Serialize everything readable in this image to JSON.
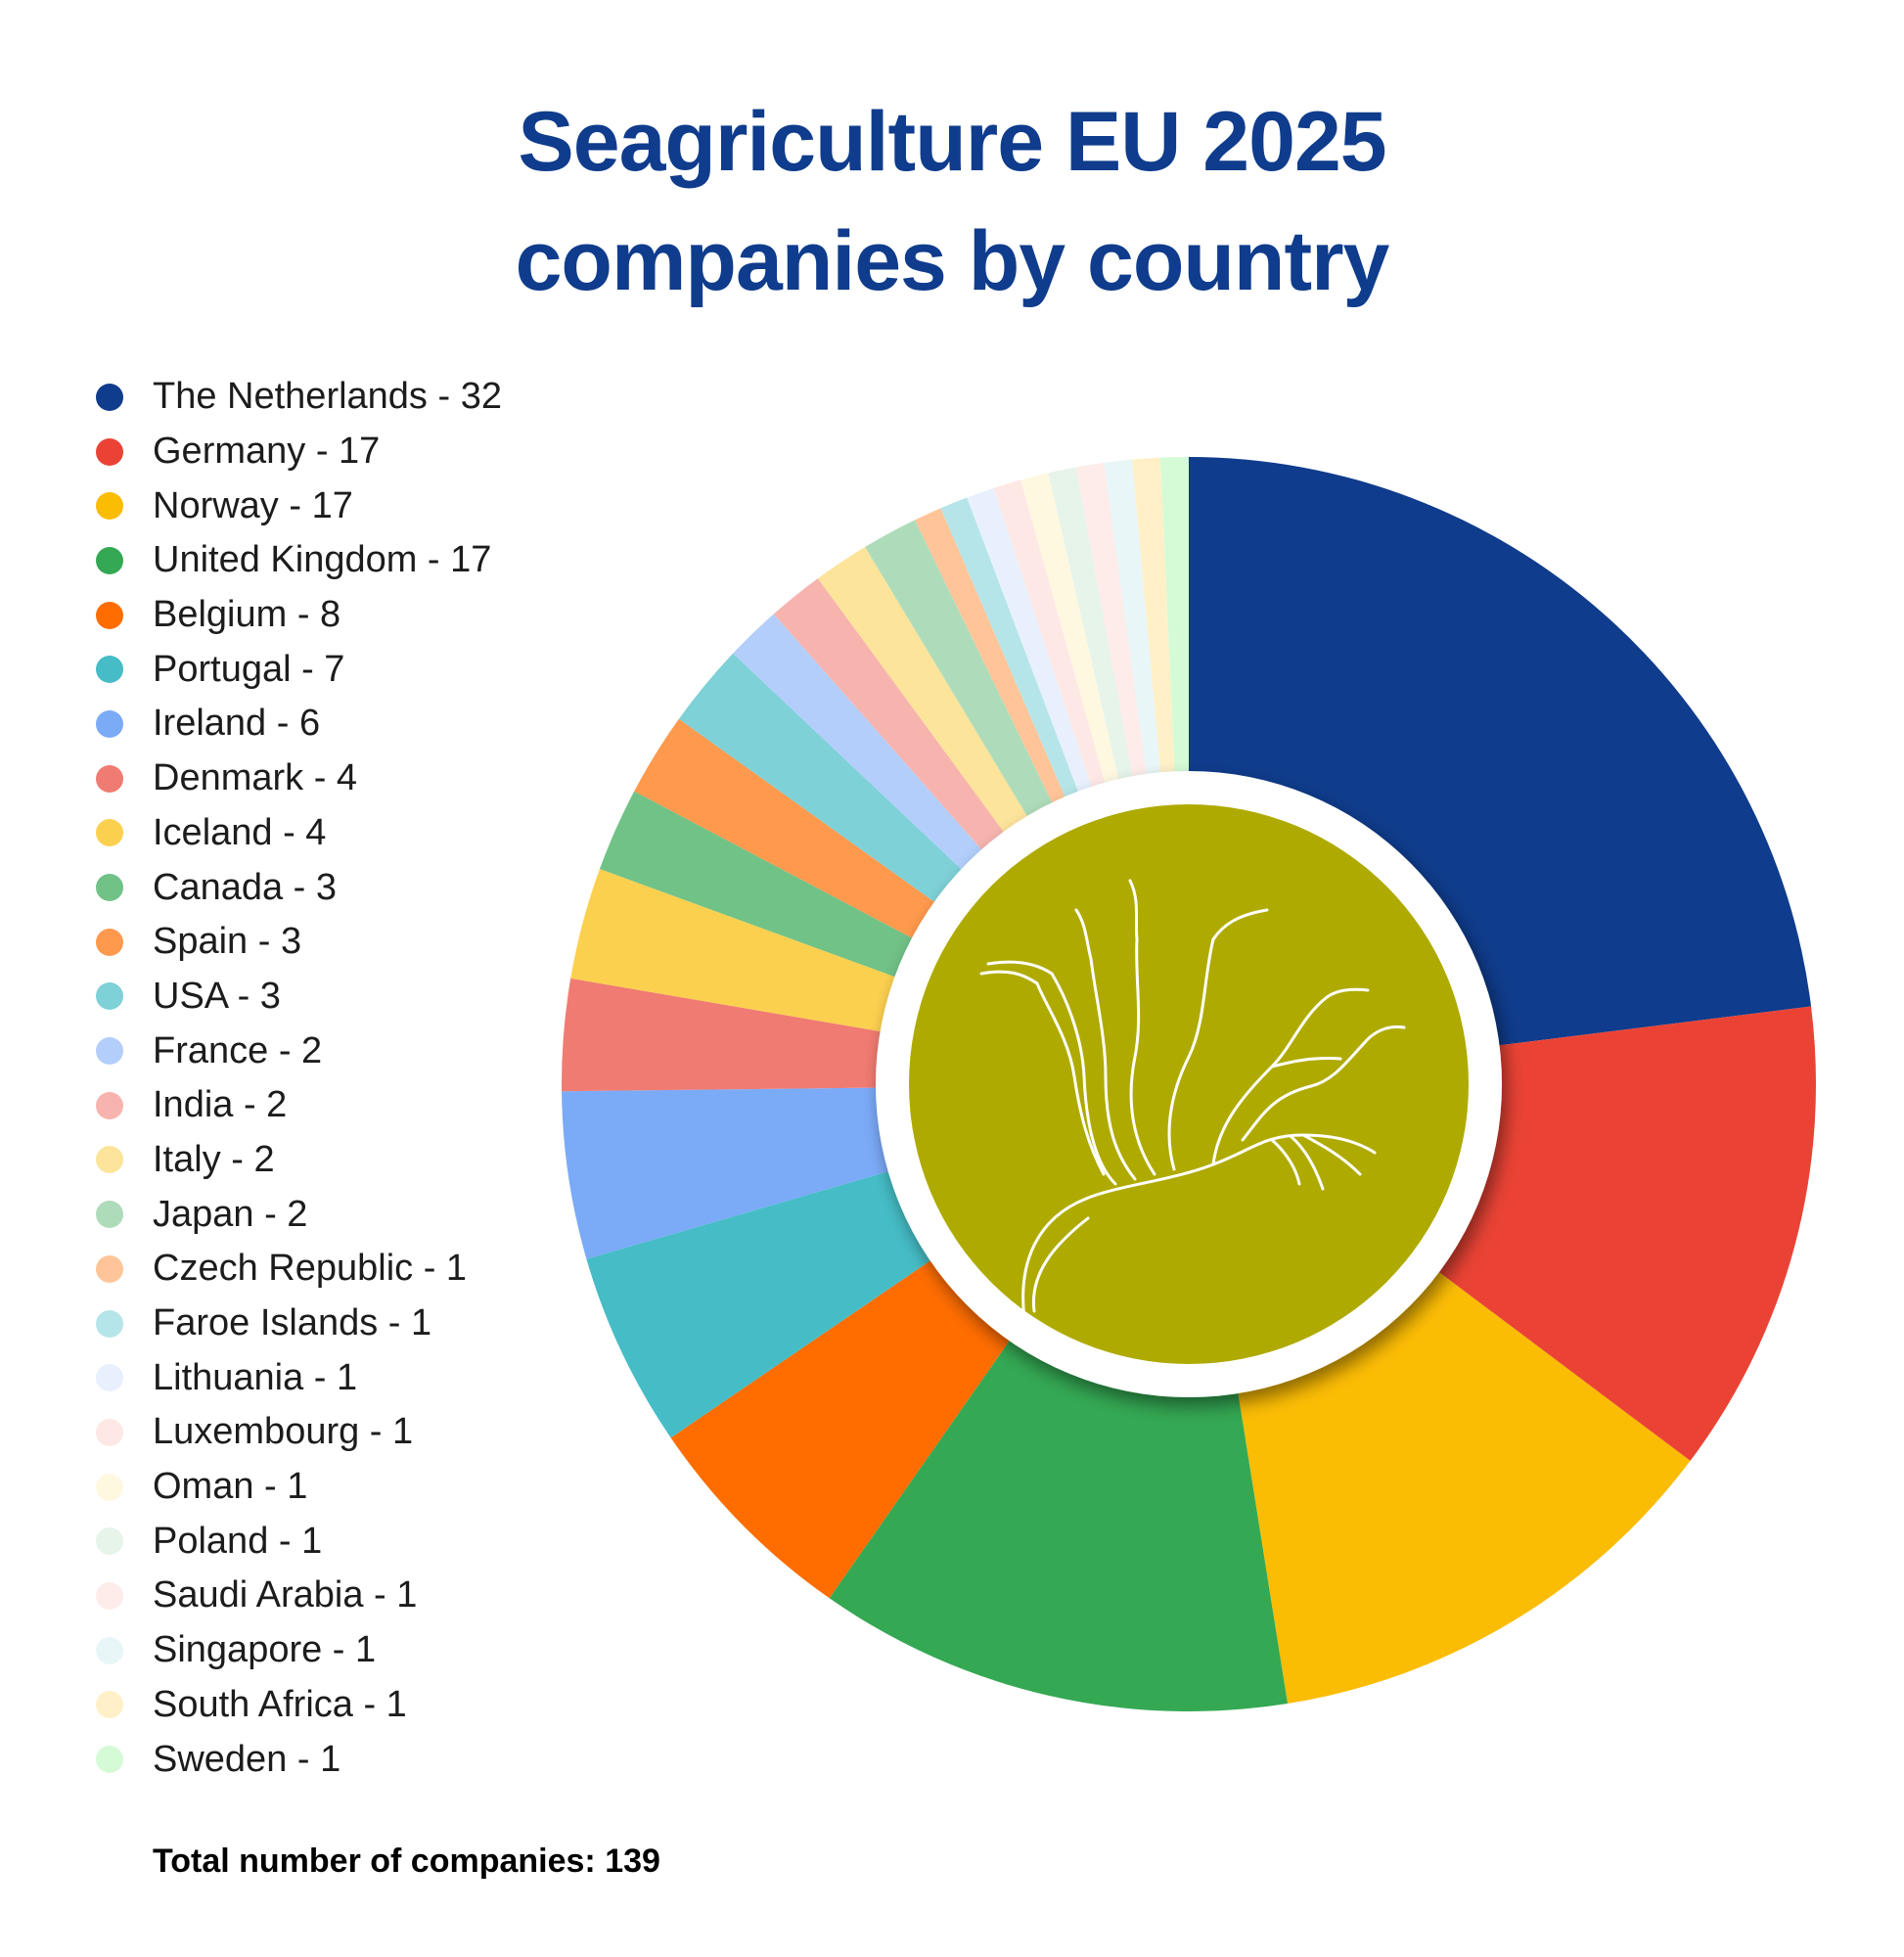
{
  "title_line1": "Seagriculture EU 2025",
  "title_line2": "companies by country",
  "total_label": "Total number of companies: 139",
  "chart_data": {
    "type": "pie",
    "subtype": "donut",
    "title": "Seagriculture EU 2025 companies by country",
    "legend_position": "left",
    "categories": [
      "The Netherlands",
      "Germany",
      "Norway",
      "United Kingdom",
      "Belgium",
      "Portugal",
      "Ireland",
      "Denmark",
      "Iceland",
      "Canada",
      "Spain",
      "USA",
      "France",
      "India",
      "Italy",
      "Japan",
      "Czech Republic",
      "Faroe Islands",
      "Lithuania",
      "Luxembourg",
      "Oman",
      "Poland",
      "Saudi Arabia",
      "Singapore",
      "South Africa",
      "Sweden"
    ],
    "values": [
      32,
      17,
      17,
      17,
      8,
      7,
      6,
      4,
      4,
      3,
      3,
      3,
      2,
      2,
      2,
      2,
      1,
      1,
      1,
      1,
      1,
      1,
      1,
      1,
      1,
      1
    ],
    "legend_labels": [
      "The Netherlands - 32",
      "Germany - 17",
      "Norway - 17",
      "United Kingdom - 17",
      "Belgium - 8",
      "Portugal - 7",
      "Ireland - 6",
      "Denmark - 4",
      "Iceland - 4",
      "Canada - 3",
      "Spain - 3",
      "USA - 3",
      "France - 2",
      "India - 2",
      "Italy - 2",
      "Japan - 2",
      "Czech Republic - 1",
      "Faroe Islands - 1",
      "Lithuania - 1",
      "Luxembourg - 1",
      "Oman - 1",
      "Poland - 1",
      "Saudi Arabia - 1",
      "Singapore - 1",
      "South Africa - 1",
      "Sweden - 1"
    ],
    "colors": [
      "#0f3c8c",
      "#ea4335",
      "#fbbc04",
      "#34a853",
      "#ff6d01",
      "#46bdc6",
      "#7baaf7",
      "#f07b72",
      "#fcd04f",
      "#71c287",
      "#ff994d",
      "#7ed1d7",
      "#b3cefb",
      "#f7b4ae",
      "#fde49b",
      "#aedcba",
      "#ffc599",
      "#b5e5e8",
      "#e8f0fe",
      "#fde8e6",
      "#fff8e1",
      "#e6f4ea",
      "#fdece9",
      "#e8f6f7",
      "#fff0c8",
      "#d4fbd6"
    ],
    "total": 139
  },
  "center_logo": {
    "fill_color": "#afaa00",
    "icon": "seaweed-icon"
  }
}
